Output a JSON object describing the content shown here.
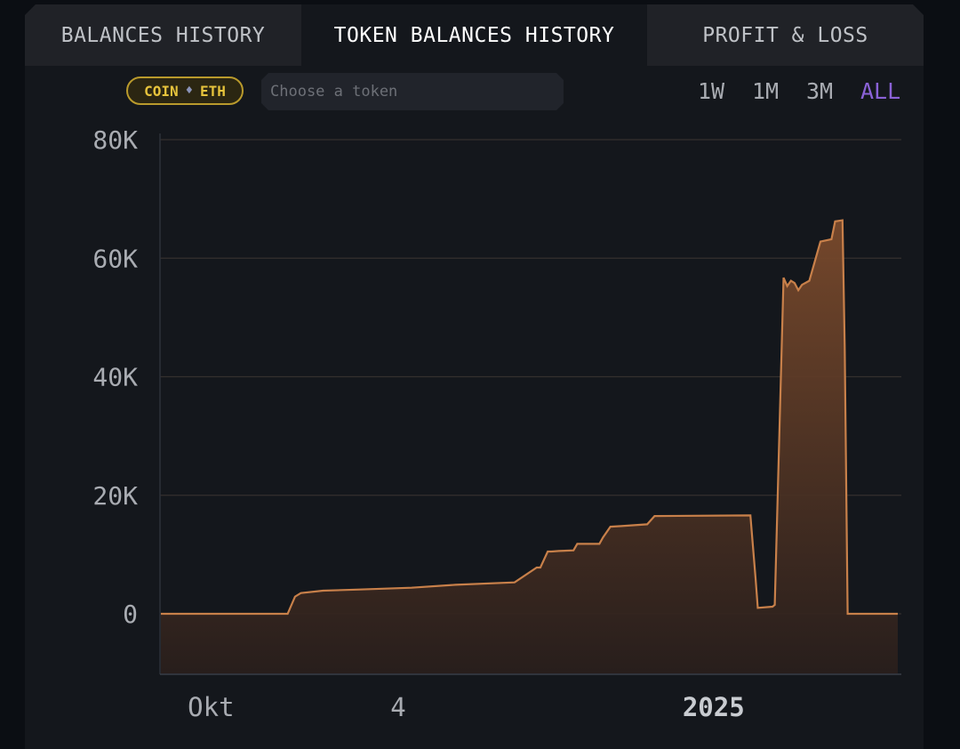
{
  "tabs": [
    {
      "label": "BALANCES HISTORY"
    },
    {
      "label": "TOKEN BALANCES HISTORY"
    },
    {
      "label": "PROFIT & LOSS"
    }
  ],
  "filters": {
    "coin_label": "COIN",
    "coin_symbol": "ETH",
    "token_placeholder": "Choose a token"
  },
  "ranges": [
    "1W",
    "1M",
    "3M",
    "ALL"
  ],
  "active_range": "ALL",
  "colors": {
    "line": "#c8804a",
    "active_tab_text": "#ffffff",
    "active_range": "#8a62d6",
    "badge": "#e6c33c"
  },
  "chart_data": {
    "type": "area",
    "title": "",
    "xlabel": "",
    "ylabel": "",
    "ylim": [
      -10000,
      80000
    ],
    "yticks": [
      0,
      20000,
      40000,
      60000,
      80000
    ],
    "ytick_labels": [
      "0",
      "20K",
      "40K",
      "60K",
      "80K"
    ],
    "xtick_labels": [
      {
        "label": "Okt",
        "pos": 0.068,
        "bold": false
      },
      {
        "label": "4",
        "pos": 0.322,
        "bold": false
      },
      {
        "label": "2025",
        "pos": 0.75,
        "bold": true
      }
    ],
    "grid": true,
    "series": [
      {
        "x": [
          0,
          0.172,
          0.182,
          0.19,
          0.22,
          0.27,
          0.34,
          0.4,
          0.48,
          0.51,
          0.515,
          0.525,
          0.53,
          0.54,
          0.56,
          0.565,
          0.575,
          0.595,
          0.6,
          0.61,
          0.625,
          0.66,
          0.67,
          0.8,
          0.807,
          0.81,
          0.83,
          0.833,
          0.845,
          0.85,
          0.855,
          0.86,
          0.865,
          0.87,
          0.88,
          0.895,
          0.91,
          0.915,
          0.925,
          0.928,
          0.932,
          1.0
        ],
        "y": [
          0,
          0,
          2900,
          3500,
          3900,
          4100,
          4400,
          4900,
          5300,
          7800,
          7800,
          10500,
          10500,
          10600,
          10700,
          11800,
          11800,
          11800,
          12900,
          14700,
          14800,
          15100,
          16500,
          16600,
          6000,
          1000,
          1200,
          1500,
          56700,
          55300,
          56200,
          55800,
          54600,
          55500,
          56200,
          62800,
          63200,
          66200,
          66400,
          45000,
          0,
          0
        ]
      }
    ]
  }
}
